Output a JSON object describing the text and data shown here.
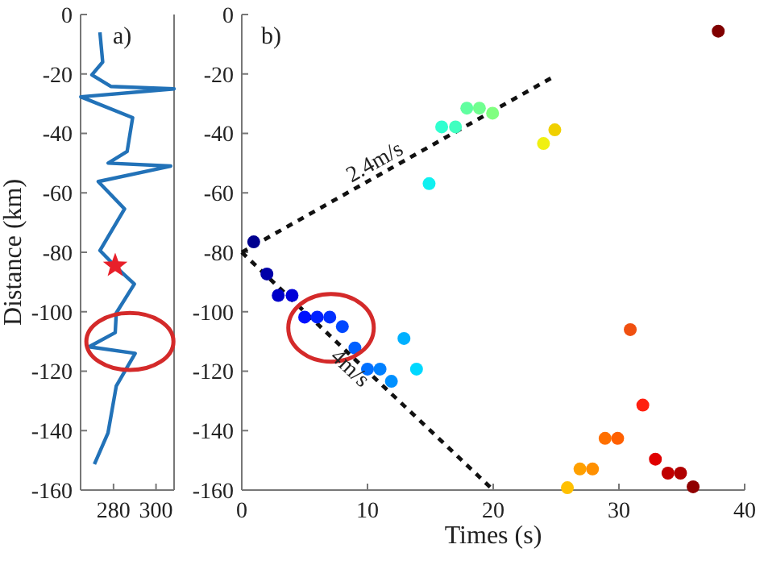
{
  "chart_data": [
    {
      "type": "line",
      "ylabel": "Distance (km)",
      "xlim": [
        264.5,
        308.5
      ],
      "xticks": [
        280,
        300
      ],
      "ylim": [
        -160,
        0
      ],
      "yticks": [
        0,
        -20,
        -40,
        -60,
        -80,
        -100,
        -120,
        -140,
        -160
      ],
      "annotations": [
        "a)"
      ],
      "series": [
        {
          "color": "#2272b8",
          "x": [
            273.6,
            274.9,
            269.8,
            278.7,
            308.5,
            264.6,
            289,
            286.4,
            277.5,
            306.9,
            272.8,
            285.2,
            273.6,
            280.8,
            289.8,
            281.3,
            280.8,
            268.5,
            290.2,
            281.3,
            277.4,
            271
          ],
          "values": [
            -6,
            -16,
            -20.3,
            -24.2,
            -25,
            -27.7,
            -34.7,
            -46.1,
            -50,
            -51,
            -56.2,
            -65.4,
            -79.4,
            -84.7,
            -90.7,
            -100.4,
            -107,
            -111.8,
            -114,
            -125,
            -140.8,
            -151.3
          ],
          "marker": "none",
          "line_style": "solid"
        },
        {
          "type": "scatter",
          "color": "#e8202a",
          "x": [
            280.8
          ],
          "values": [
            -84.5
          ],
          "marker": "star"
        }
      ]
    },
    {
      "type": "scatter",
      "xlabel": "Times (s)",
      "xlim": [
        0,
        40
      ],
      "xticks": [
        0,
        10,
        20,
        30,
        40
      ],
      "ylim": [
        -160,
        0
      ],
      "yticks": [
        0,
        -20,
        -40,
        -60,
        -80,
        -100,
        -120,
        -140,
        -160
      ],
      "annotations": [
        "b)",
        "2.4m/s",
        "4m/s"
      ],
      "series": [
        {
          "type": "line",
          "color": "#111111",
          "x": [
            0,
            24.6
          ],
          "values": [
            -80,
            -21.4
          ],
          "marker": "none",
          "line_style": "dashed"
        },
        {
          "type": "line",
          "color": "#111111",
          "x": [
            0,
            20
          ],
          "values": [
            -80,
            -160
          ],
          "marker": "none",
          "line_style": "dashed"
        },
        {
          "marker": "circle",
          "x": [
            0.95,
            2,
            2.9,
            4,
            5,
            6,
            7,
            8,
            9,
            10,
            11,
            11.9,
            12.9,
            13.9,
            14.9,
            15.9,
            17,
            17.9,
            18.9,
            19.95,
            24,
            24.9,
            25.9,
            26.9,
            27.9,
            28.9,
            29.9,
            30.9,
            31.9,
            32.9,
            33.9,
            34.9,
            35.9,
            37.9
          ],
          "values": [
            -76.5,
            -87.3,
            -94.5,
            -94.5,
            -101.8,
            -101.8,
            -101.8,
            -105,
            -112.2,
            -119.3,
            -119.3,
            -123.4,
            -109,
            -119.3,
            -56.9,
            -37.8,
            -37.8,
            -31.5,
            -31.5,
            -33.2,
            -43.4,
            -38.8,
            -159.2,
            -152.9,
            -152.9,
            -142.6,
            -142.6,
            -106,
            -131.4,
            -149.6,
            -154.3,
            -154.3,
            -158.9,
            -5.6
          ],
          "colors": [
            "#00008f",
            "#0000a8",
            "#0000c8",
            "#0000d8",
            "#0010ff",
            "#0020ff",
            "#0030ff",
            "#0048ff",
            "#0060ff",
            "#0070ff",
            "#0080ff",
            "#0090ff",
            "#00b0ff",
            "#00d8ff",
            "#10f0f0",
            "#30ffd0",
            "#40ffc0",
            "#60ffa0",
            "#70ff90",
            "#80ff80",
            "#f0f010",
            "#f0d000",
            "#ffc000",
            "#ffa000",
            "#ff9000",
            "#ff7000",
            "#ff6000",
            "#f05010",
            "#ff2010",
            "#e00000",
            "#c00000",
            "#b00000",
            "#900000",
            "#800000"
          ]
        }
      ]
    }
  ]
}
